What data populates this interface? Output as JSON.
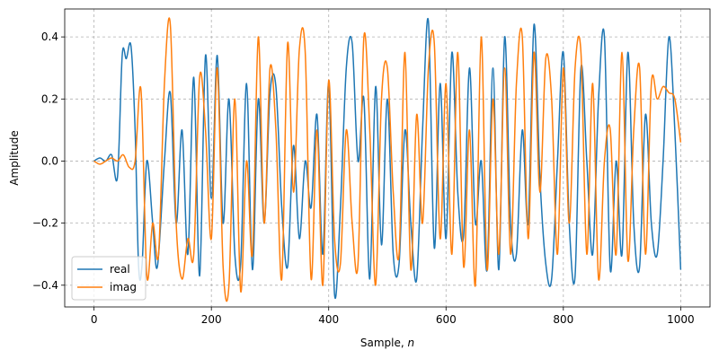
{
  "chart_data": {
    "type": "line",
    "title": "",
    "xlabel": "Sample, ",
    "xlabel_italic": "n",
    "ylabel": "Amplitude",
    "xlim": [
      -50,
      1050
    ],
    "ylim": [
      -0.47,
      0.49
    ],
    "xticks": [
      0,
      200,
      400,
      600,
      800,
      1000
    ],
    "yticks": [
      -0.4,
      -0.2,
      0.0,
      0.2,
      0.4
    ],
    "ytick_labels": [
      "−0.4",
      "−0.2",
      "0.0",
      "0.2",
      "0.4"
    ],
    "grid": true,
    "legend_position": "lower-left",
    "series": [
      {
        "name": "real",
        "color": "#1f77b4",
        "x": [
          0,
          10,
          20,
          30,
          40,
          48,
          55,
          63,
          70,
          76,
          82,
          90,
          100,
          108,
          120,
          130,
          140,
          150,
          160,
          170,
          180,
          190,
          200,
          210,
          220,
          230,
          240,
          250,
          260,
          270,
          280,
          290,
          300,
          310,
          320,
          330,
          340,
          350,
          360,
          370,
          380,
          390,
          400,
          410,
          420,
          430,
          440,
          450,
          460,
          470,
          480,
          490,
          500,
          510,
          520,
          530,
          540,
          550,
          560,
          570,
          580,
          590,
          600,
          610,
          620,
          630,
          640,
          650,
          660,
          670,
          680,
          690,
          700,
          710,
          720,
          730,
          740,
          750,
          760,
          770,
          780,
          790,
          800,
          810,
          820,
          830,
          840,
          850,
          860,
          870,
          880,
          890,
          900,
          910,
          920,
          930,
          940,
          950,
          960,
          970,
          980,
          990,
          1000
        ],
        "y": [
          0.0,
          0.01,
          0.0,
          0.02,
          -0.05,
          0.34,
          0.33,
          0.37,
          0.1,
          -0.34,
          -0.33,
          0.0,
          -0.2,
          -0.34,
          0.0,
          0.22,
          -0.2,
          0.1,
          -0.3,
          0.27,
          -0.37,
          0.34,
          -0.12,
          0.34,
          -0.2,
          0.2,
          -0.3,
          -0.33,
          0.25,
          -0.35,
          0.2,
          -0.2,
          0.22,
          0.24,
          -0.15,
          -0.34,
          0.05,
          -0.25,
          0.0,
          -0.15,
          0.15,
          -0.3,
          0.25,
          -0.43,
          -0.15,
          0.3,
          0.38,
          0.0,
          0.2,
          -0.38,
          0.24,
          -0.27,
          0.2,
          -0.3,
          -0.33,
          0.1,
          -0.2,
          -0.38,
          0.1,
          0.45,
          -0.28,
          0.25,
          -0.25,
          0.35,
          -0.1,
          -0.24,
          0.3,
          -0.2,
          0.0,
          -0.35,
          0.3,
          -0.35,
          0.4,
          -0.2,
          -0.3,
          0.1,
          -0.2,
          0.44,
          -0.05,
          -0.33,
          -0.38,
          0.0,
          0.35,
          -0.2,
          -0.37,
          0.3,
          0.0,
          -0.3,
          0.2,
          0.4,
          -0.35,
          0.0,
          -0.3,
          0.35,
          -0.2,
          -0.34,
          0.15,
          -0.2,
          -0.3,
          0.0,
          0.4,
          0.1,
          -0.35
        ]
      },
      {
        "name": "imag",
        "color": "#ff7f0e",
        "x": [
          0,
          10,
          20,
          30,
          40,
          50,
          60,
          70,
          80,
          90,
          100,
          110,
          120,
          130,
          140,
          150,
          160,
          170,
          180,
          190,
          200,
          210,
          220,
          230,
          240,
          250,
          260,
          270,
          280,
          290,
          300,
          310,
          320,
          330,
          340,
          350,
          360,
          370,
          380,
          390,
          400,
          410,
          420,
          430,
          440,
          450,
          460,
          470,
          480,
          490,
          500,
          510,
          520,
          530,
          540,
          550,
          560,
          570,
          580,
          590,
          600,
          610,
          620,
          630,
          640,
          650,
          660,
          670,
          680,
          690,
          700,
          710,
          720,
          730,
          740,
          750,
          760,
          770,
          780,
          790,
          800,
          810,
          820,
          830,
          840,
          850,
          860,
          870,
          880,
          890,
          900,
          910,
          920,
          930,
          940,
          950,
          960,
          970,
          980,
          990,
          1000
        ],
        "y": [
          0.0,
          -0.01,
          0.0,
          0.01,
          0.0,
          0.02,
          -0.02,
          0.0,
          0.23,
          -0.37,
          -0.2,
          -0.3,
          0.25,
          0.44,
          -0.2,
          -0.38,
          -0.25,
          -0.3,
          0.27,
          0.1,
          -0.25,
          0.3,
          -0.34,
          -0.4,
          0.2,
          -0.42,
          0.0,
          -0.3,
          0.4,
          -0.2,
          0.3,
          0.1,
          -0.38,
          0.38,
          -0.1,
          0.36,
          0.35,
          -0.38,
          0.1,
          -0.4,
          0.26,
          -0.25,
          -0.33,
          0.1,
          -0.2,
          -0.33,
          0.4,
          0.1,
          -0.4,
          0.2,
          0.3,
          -0.1,
          -0.3,
          0.35,
          -0.35,
          0.15,
          -0.2,
          0.3,
          0.38,
          -0.25,
          0.25,
          -0.3,
          0.35,
          -0.34,
          0.1,
          -0.4,
          0.4,
          -0.35,
          0.2,
          -0.3,
          0.3,
          -0.3,
          0.25,
          0.4,
          -0.25,
          0.35,
          -0.1,
          0.33,
          0.2,
          -0.3,
          0.3,
          -0.2,
          0.3,
          0.35,
          -0.3,
          0.25,
          -0.38,
          0.0,
          0.1,
          -0.3,
          0.35,
          -0.32,
          0.1,
          0.3,
          -0.3,
          0.25,
          0.2,
          0.24,
          0.22,
          0.2,
          0.06
        ]
      }
    ]
  }
}
